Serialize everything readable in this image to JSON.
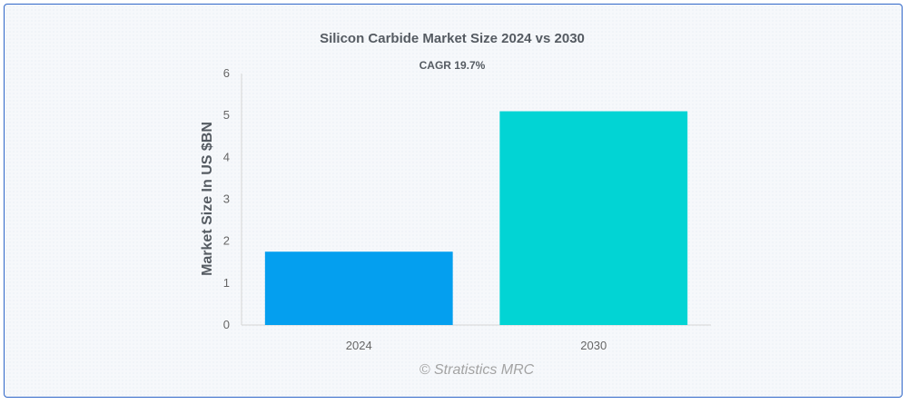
{
  "chart_data": {
    "type": "bar",
    "title": "Silicon Carbide Market Size 2024 vs 2030",
    "subtitle": "CAGR 19.7%",
    "ylabel": "Market Size In US $BN",
    "xlabel": "",
    "categories": [
      "2024",
      "2030"
    ],
    "values": [
      1.75,
      5.1
    ],
    "colors": [
      "#049fef",
      "#02d4d4"
    ],
    "ylim": [
      0,
      6
    ],
    "yticks": [
      "0",
      "1",
      "2",
      "3",
      "4",
      "5",
      "6"
    ],
    "grid": false,
    "legend": "none"
  },
  "watermark": "© Stratistics MRC"
}
